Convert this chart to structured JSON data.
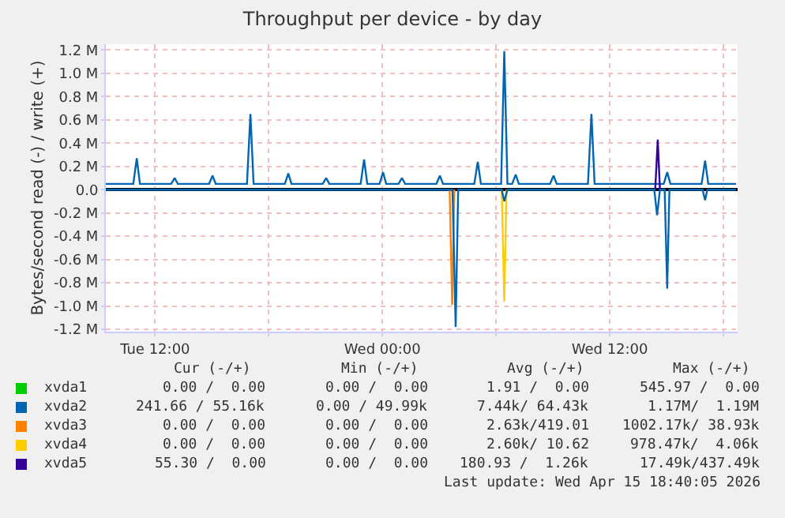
{
  "chart_data": {
    "type": "line",
    "title": "Throughput per device - by day",
    "ylabel": "Bytes/second read (-) / write (+)",
    "xlim": [
      "2026-04-14T09:24",
      "2026-04-15T18:45"
    ],
    "xticks": [
      {
        "value": "2026-04-14T12:00",
        "label": "Tue 12:00"
      },
      {
        "value": "2026-04-14T18:00",
        "label": null
      },
      {
        "value": "2026-04-15T00:00",
        "label": "Wed 00:00"
      },
      {
        "value": "2026-04-15T06:00",
        "label": null
      },
      {
        "value": "2026-04-15T12:00",
        "label": "Wed 12:00"
      },
      {
        "value": "2026-04-15T18:00",
        "label": null
      }
    ],
    "ylim": [
      -1.22,
      1.25
    ],
    "yticks": [
      {
        "value": 1.2,
        "label": "1.2 M"
      },
      {
        "value": 1.0,
        "label": "1.0 M"
      },
      {
        "value": 0.8,
        "label": "0.8 M"
      },
      {
        "value": 0.6,
        "label": "0.6 M"
      },
      {
        "value": 0.4,
        "label": "0.4 M"
      },
      {
        "value": 0.2,
        "label": "0.2 M"
      },
      {
        "value": 0,
        "label": "0.0"
      },
      {
        "value": -0.2,
        "label": "-0.2 M"
      },
      {
        "value": -0.4,
        "label": "-0.4 M"
      },
      {
        "value": -0.6,
        "label": "-0.6 M"
      },
      {
        "value": -0.8,
        "label": "-0.8 M"
      },
      {
        "value": -1.0,
        "label": "-1.0 M"
      },
      {
        "value": -1.2,
        "label": "-1.2 M"
      }
    ],
    "grid": true,
    "legend": "bottom",
    "marker": "none",
    "line_style": "solid",
    "series": [
      {
        "name": "xvda1",
        "color": "#00cc00",
        "values": [
          null
        ]
      },
      {
        "name": "xvda2",
        "color": "#0066b3",
        "x": [
          "2026-04-14T09:24",
          "2026-04-14T10:51",
          "2026-04-14T11:02",
          "2026-04-14T11:12",
          "2026-04-14T12:51",
          "2026-04-14T13:02",
          "2026-04-14T13:12",
          "2026-04-14T14:51",
          "2026-04-14T15:02",
          "2026-04-14T15:12",
          "2026-04-14T16:51",
          "2026-04-14T17:02",
          "2026-04-14T17:12",
          "2026-04-14T18:51",
          "2026-04-14T19:02",
          "2026-04-14T19:12",
          "2026-04-14T20:51",
          "2026-04-14T21:02",
          "2026-04-14T21:12",
          "2026-04-14T22:51",
          "2026-04-14T23:02",
          "2026-04-14T23:12",
          "2026-04-14T23:51",
          "2026-04-15T00:02",
          "2026-04-15T00:12",
          "2026-04-15T00:51",
          "2026-04-15T01:02",
          "2026-04-15T01:12",
          "2026-04-15T02:51",
          "2026-04-15T03:02",
          "2026-04-15T03:12",
          "2026-04-15T04:51",
          "2026-04-15T05:02",
          "2026-04-15T05:12",
          "2026-04-15T06:16",
          "2026-04-15T06:26",
          "2026-04-15T06:36",
          "2026-04-15T06:51",
          "2026-04-15T07:02",
          "2026-04-15T07:12",
          "2026-04-15T08:51",
          "2026-04-15T09:02",
          "2026-04-15T09:12",
          "2026-04-15T10:51",
          "2026-04-15T11:02",
          "2026-04-15T11:12",
          "2026-04-15T14:51",
          "2026-04-15T15:02",
          "2026-04-15T15:12",
          "2026-04-15T16:51",
          "2026-04-15T17:02",
          "2026-04-15T17:12",
          "2026-04-15T18:40"
        ],
        "values": [
          0.05,
          0.05,
          0.27,
          0.05,
          0.05,
          0.1,
          0.05,
          0.05,
          0.12,
          0.05,
          0.05,
          0.65,
          0.05,
          0.05,
          0.14,
          0.05,
          0.05,
          0.1,
          0.05,
          0.05,
          0.26,
          0.05,
          0.05,
          0.15,
          0.05,
          0.05,
          0.1,
          0.05,
          0.05,
          0.12,
          0.05,
          0.05,
          0.24,
          0.05,
          0.05,
          1.19,
          0.05,
          0.05,
          0.13,
          0.05,
          0.05,
          0.12,
          0.05,
          0.05,
          0.65,
          0.05,
          0.05,
          0.15,
          0.05,
          0.05,
          0.25,
          0.05,
          0.05
        ]
      },
      {
        "name": "xvda3",
        "color": "#ff8000",
        "x": [
          "2026-04-15T03:33",
          "2026-04-15T03:41",
          "2026-04-15T03:48"
        ],
        "values": [
          0,
          -0.99,
          0
        ]
      },
      {
        "name": "xvda4",
        "color": "#ffcc00",
        "x": [
          "2026-04-15T06:18",
          "2026-04-15T06:26",
          "2026-04-15T06:33"
        ],
        "values": [
          0,
          -0.96,
          0
        ]
      },
      {
        "name": "xvda5",
        "color": "#330099",
        "x": [
          "2026-04-15T14:24",
          "2026-04-15T14:32",
          "2026-04-15T14:39"
        ],
        "values": [
          0,
          0.43,
          0
        ]
      },
      {
        "color": "#0066b3",
        "x": [
          "2026-04-14T09:24",
          "2026-04-15T03:42",
          "2026-04-15T03:52",
          "2026-04-15T04:00",
          "2026-04-15T06:18",
          "2026-04-15T06:26",
          "2026-04-15T06:36",
          "2026-04-15T14:21",
          "2026-04-15T14:30",
          "2026-04-15T14:39",
          "2026-04-15T14:54",
          "2026-04-15T15:02",
          "2026-04-15T15:09",
          "2026-04-15T16:54",
          "2026-04-15T17:02",
          "2026-04-15T17:09",
          "2026-04-15T18:40"
        ],
        "values": [
          0,
          0,
          -1.18,
          0,
          0,
          -0.1,
          0,
          0,
          -0.22,
          0,
          0,
          -0.85,
          0,
          0,
          -0.09,
          0,
          0
        ]
      }
    ],
    "annotations": [
      "Cur (-/+)",
      "Min (-/+)",
      "Avg (-/+)",
      "Max (-/+)",
      "0.00 /  0.00",
      "0.00 /  0.00",
      "1.91 /  0.00",
      "545.97 /  0.00",
      "241.66 / 55.16k",
      "0.00 / 49.99k",
      "7.44k/ 64.43k",
      "1.17M/  1.19M",
      "0.00 /  0.00",
      "0.00 /  0.00",
      "2.63k/419.01",
      "1002.17k/ 38.93k",
      "0.00 /  0.00",
      "0.00 /  0.00",
      "2.60k/ 10.62",
      "978.47k/  4.06k",
      "55.30 /  0.00",
      "0.00 /  0.00",
      "180.93 /  1.26k",
      "17.49k/437.49k",
      "Last update: Wed Apr 15 18:40:05 2026"
    ]
  }
}
